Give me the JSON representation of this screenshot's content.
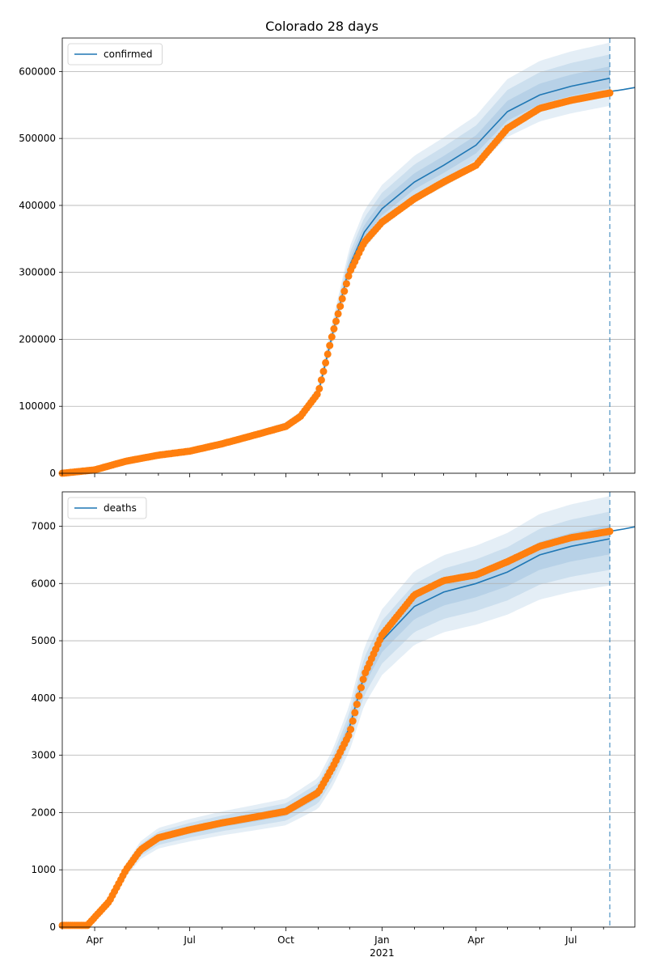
{
  "title": "Colorado 28 days",
  "colors": {
    "model": "#1f77b4",
    "observed": "#ff7f0e",
    "grid": "#b0b0b0",
    "band": "#1f77b4"
  },
  "chart_data": {
    "type": "line",
    "title": "Colorado 28 days",
    "x_axis": {
      "type": "date",
      "range": [
        "2020-03-01",
        "2021-08-31"
      ],
      "major_ticks": [
        {
          "date": "2020-04-01",
          "label": "Apr"
        },
        {
          "date": "2020-07-01",
          "label": "Jul"
        },
        {
          "date": "2020-10-01",
          "label": "Oct"
        },
        {
          "date": "2021-01-01",
          "label": "Jan"
        },
        {
          "date": "2021-04-01",
          "label": "Apr"
        },
        {
          "date": "2021-07-01",
          "label": "Jul"
        }
      ],
      "year_label": {
        "date": "2021-01-01",
        "label": "2021"
      },
      "forecast_start": "2021-08-07"
    },
    "panels": [
      {
        "name": "confirmed",
        "legend": "confirmed",
        "ylim": [
          0,
          650000
        ],
        "yticks": [
          0,
          100000,
          200000,
          300000,
          400000,
          500000,
          600000
        ],
        "grid": true,
        "legend_position": "upper-left",
        "model_line": {
          "x": [
            "2020-03-01",
            "2020-04-01",
            "2020-05-01",
            "2020-06-01",
            "2020-07-01",
            "2020-08-01",
            "2020-09-01",
            "2020-10-01",
            "2020-10-15",
            "2020-11-01",
            "2020-11-15",
            "2020-12-01",
            "2020-12-15",
            "2021-01-01",
            "2021-02-01",
            "2021-03-01",
            "2021-04-01",
            "2021-05-01",
            "2021-06-01",
            "2021-07-01",
            "2021-08-07"
          ],
          "y": [
            0,
            5000,
            18000,
            27000,
            33000,
            44000,
            57000,
            70000,
            85000,
            120000,
            210000,
            310000,
            360000,
            395000,
            435000,
            460000,
            490000,
            540000,
            565000,
            578000,
            590000
          ]
        },
        "forecast_line": {
          "x": [
            "2021-08-07",
            "2021-08-20",
            "2021-08-31"
          ],
          "y": [
            570000,
            573000,
            576000
          ]
        },
        "bands": [
          {
            "level": 0.9,
            "lo_factor": 0.93,
            "hi_factor": 1.09
          },
          {
            "level": 0.7,
            "lo_factor": 0.955,
            "hi_factor": 1.06
          },
          {
            "level": 0.5,
            "lo_factor": 0.975,
            "hi_factor": 1.03
          }
        ],
        "observed": {
          "x": [
            "2020-03-01",
            "2020-04-01",
            "2020-05-01",
            "2020-06-01",
            "2020-07-01",
            "2020-08-01",
            "2020-09-01",
            "2020-10-01",
            "2020-10-15",
            "2020-11-01",
            "2020-11-15",
            "2020-12-01",
            "2020-12-15",
            "2021-01-01",
            "2021-02-01",
            "2021-03-01",
            "2021-04-01",
            "2021-05-01",
            "2021-06-01",
            "2021-07-01",
            "2021-08-07"
          ],
          "y": [
            0,
            5000,
            18000,
            27000,
            33000,
            44000,
            57000,
            70000,
            85000,
            120000,
            210000,
            300000,
            345000,
            375000,
            410000,
            435000,
            460000,
            515000,
            545000,
            557000,
            568000
          ]
        }
      },
      {
        "name": "deaths",
        "legend": "deaths",
        "ylim": [
          0,
          7600
        ],
        "yticks": [
          0,
          1000,
          2000,
          3000,
          4000,
          5000,
          6000,
          7000
        ],
        "grid": true,
        "legend_position": "upper-left",
        "model_line": {
          "x": [
            "2020-03-01",
            "2020-03-25",
            "2020-04-15",
            "2020-05-01",
            "2020-05-15",
            "2020-06-01",
            "2020-07-01",
            "2020-08-01",
            "2020-09-01",
            "2020-10-01",
            "2020-11-01",
            "2020-11-15",
            "2020-12-01",
            "2020-12-15",
            "2021-01-01",
            "2021-02-01",
            "2021-03-01",
            "2021-04-01",
            "2021-05-01",
            "2021-06-01",
            "2021-07-01",
            "2021-08-07"
          ],
          "y": [
            30,
            30,
            450,
            1000,
            1350,
            1560,
            1700,
            1820,
            1920,
            2020,
            2350,
            2800,
            3500,
            4400,
            5000,
            5600,
            5850,
            6000,
            6200,
            6500,
            6650,
            6780
          ]
        },
        "forecast_line": {
          "x": [
            "2021-08-07",
            "2021-08-20",
            "2021-08-31"
          ],
          "y": [
            6910,
            6950,
            6990
          ]
        },
        "bands": [
          {
            "level": 0.9,
            "lo_factor": 0.88,
            "hi_factor": 1.11
          },
          {
            "level": 0.7,
            "lo_factor": 0.92,
            "hi_factor": 1.07
          },
          {
            "level": 0.5,
            "lo_factor": 0.96,
            "hi_factor": 1.035
          }
        ],
        "observed": {
          "x": [
            "2020-03-01",
            "2020-03-25",
            "2020-04-15",
            "2020-05-01",
            "2020-05-15",
            "2020-06-01",
            "2020-07-01",
            "2020-08-01",
            "2020-09-01",
            "2020-10-01",
            "2020-11-01",
            "2020-11-15",
            "2020-12-01",
            "2020-12-15",
            "2021-01-01",
            "2021-02-01",
            "2021-03-01",
            "2021-04-01",
            "2021-05-01",
            "2021-06-01",
            "2021-07-01",
            "2021-08-07"
          ],
          "y": [
            30,
            30,
            450,
            1000,
            1350,
            1560,
            1700,
            1820,
            1920,
            2020,
            2350,
            2800,
            3380,
            4400,
            5100,
            5800,
            6050,
            6150,
            6380,
            6650,
            6800,
            6910
          ]
        }
      }
    ]
  }
}
